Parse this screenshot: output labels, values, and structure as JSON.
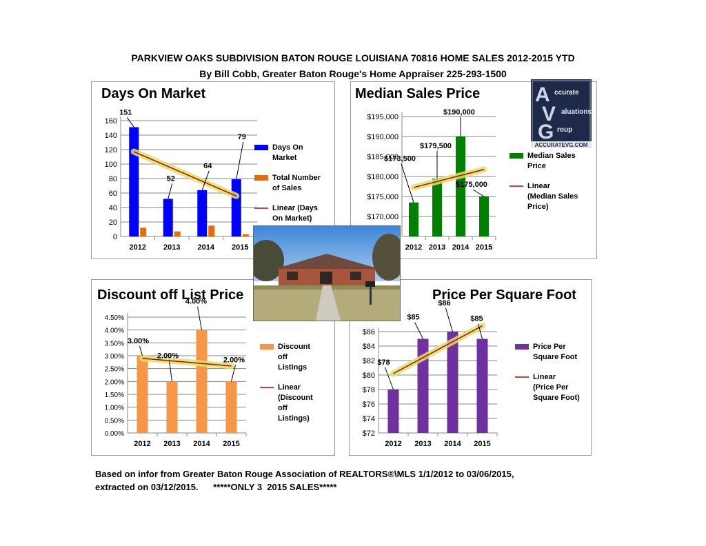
{
  "header": {
    "title": "PARKVIEW OAKS SUBDIVISION BATON ROUGE LOUISIANA 70816 HOME SALES 2012-2015 YTD",
    "subtitle": "By Bill Cobb, Greater Baton Rouge's Home Appraiser 225-293-1500"
  },
  "footer": {
    "line1": "Based on infor from Greater Baton Rouge Association of REALTORS®\\MLS 1/1/2012 to 03/06/2015,",
    "line2": "extracted on 03/12/2015.      *****ONLY 3  2015 SALES*****"
  },
  "logo": {
    "letters": [
      "A",
      "V",
      "G"
    ],
    "words": [
      "ccurate",
      "aluations",
      "roup"
    ],
    "url": "ACCURATEVG.COM"
  },
  "colors": {
    "blue": "#0000ff",
    "orange": "#e46c0a",
    "green": "#008000",
    "light_orange": "#f79646",
    "purple": "#7030a0",
    "trend_red": "#c00000",
    "trend_glow": "#d9e36a"
  },
  "chart_data": [
    {
      "id": "dom",
      "type": "bar",
      "title": "Days On Market",
      "categories": [
        "2012",
        "2013",
        "2014",
        "2015"
      ],
      "series": [
        {
          "name": "Days On Market",
          "values": [
            151,
            52,
            64,
            79
          ],
          "labels": [
            "151",
            "52",
            "64",
            "79"
          ]
        },
        {
          "name": "Total Number of Sales",
          "values": [
            12,
            7,
            15,
            3
          ]
        }
      ],
      "trendline": "Linear (Days On Market)",
      "legend": [
        {
          "text": "Days On Market",
          "kind": "box",
          "color": "#0000ff"
        },
        {
          "text": "Total Number of Sales",
          "kind": "box",
          "color": "#e46c0a"
        },
        {
          "text": "Linear (Days On Market)",
          "kind": "line",
          "color": "#c00000"
        }
      ],
      "ylim": [
        0,
        160
      ],
      "yticks": [
        "0",
        "20",
        "40",
        "60",
        "80",
        "100",
        "120",
        "140",
        "160"
      ],
      "legend_position": "right"
    },
    {
      "id": "msp",
      "type": "bar",
      "title": "Median Sales Price",
      "categories": [
        "2012",
        "2013",
        "2014",
        "2015"
      ],
      "series": [
        {
          "name": "Median Sales Price",
          "values": [
            173500,
            179500,
            190000,
            175000
          ],
          "labels": [
            "$173,500",
            "$179,500",
            "$190,000",
            "$175,000"
          ]
        }
      ],
      "trendline": "Linear (Median Sales Price)",
      "legend": [
        {
          "text": "Median Sales Price",
          "kind": "box",
          "color": "#008000"
        },
        {
          "text": "Linear (Median Sales Price)",
          "kind": "line",
          "color": "#c00000"
        }
      ],
      "ylim": [
        165000,
        195000
      ],
      "yticks": [
        "$170,000",
        "$175,000",
        "$180,000",
        "$185,000",
        "$190,000",
        "$195,000"
      ],
      "legend_position": "right"
    },
    {
      "id": "disc",
      "type": "bar",
      "title": "Discount off List Price",
      "categories": [
        "2012",
        "2013",
        "2014",
        "2015"
      ],
      "series": [
        {
          "name": "Discount off Listings",
          "values": [
            3.0,
            2.0,
            4.0,
            2.0
          ],
          "labels": [
            "3.00%",
            "2.00%",
            "4.00%",
            "2.00%"
          ]
        }
      ],
      "trendline": "Linear (Discount off Listings)",
      "legend": [
        {
          "text": "Discount off Listings",
          "kind": "box",
          "color": "#f79646"
        },
        {
          "text": "Linear (Discount off Listings)",
          "kind": "line",
          "color": "#c00000"
        }
      ],
      "ylim": [
        0,
        4.5
      ],
      "yticks": [
        "0.00%",
        "0.50%",
        "1.00%",
        "1.50%",
        "2.00%",
        "2.50%",
        "3.00%",
        "3.50%",
        "4.00%",
        "4.50%"
      ],
      "legend_position": "right"
    },
    {
      "id": "ppsf",
      "type": "bar",
      "title": "Price Per Square Foot",
      "categories": [
        "2012",
        "2013",
        "2014",
        "2015"
      ],
      "series": [
        {
          "name": "Price Per Square Foot",
          "values": [
            78,
            85,
            86,
            85
          ],
          "labels": [
            "$78",
            "$85",
            "$86",
            "$85"
          ]
        }
      ],
      "trendline": "Linear (Price Per Square Foot)",
      "legend": [
        {
          "text": "Price Per Square Foot",
          "kind": "box",
          "color": "#7030a0"
        },
        {
          "text": "Linear (Price Per Square Foot)",
          "kind": "line",
          "color": "#c00000"
        }
      ],
      "ylim": [
        72,
        86
      ],
      "yticks": [
        "$72",
        "$74",
        "$76",
        "$78",
        "$80",
        "$82",
        "$84",
        "$86"
      ],
      "legend_position": "right"
    }
  ]
}
